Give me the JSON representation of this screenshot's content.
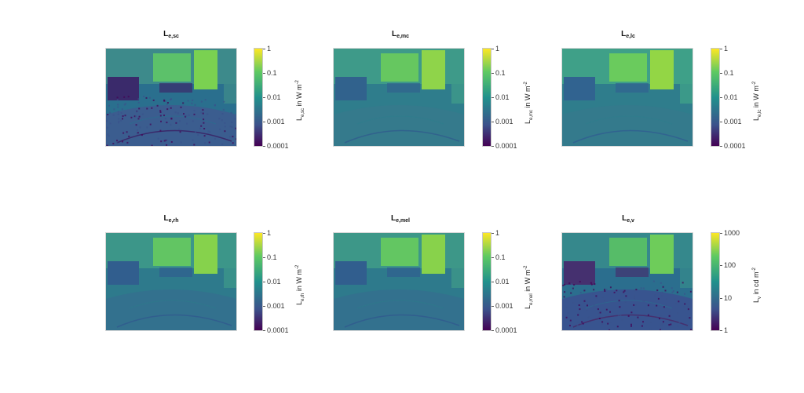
{
  "chart_data": [
    {
      "type": "heatmap",
      "title_main": "L",
      "title_sub": "e,sc",
      "colorbar": {
        "scale": "log",
        "range": [
          0.0001,
          1
        ],
        "ticks": [
          "1",
          "0.1",
          "0.01",
          "0.001",
          "0.0001"
        ],
        "label_main": "L",
        "label_sub": "e,sc",
        "label_rest": " in W m",
        "label_sup": "-2"
      },
      "colormap": "viridis"
    },
    {
      "type": "heatmap",
      "title_main": "L",
      "title_sub": "e,mc",
      "colorbar": {
        "scale": "log",
        "range": [
          0.0001,
          1
        ],
        "ticks": [
          "1",
          "0.1",
          "0.01",
          "0.001",
          "0.0001"
        ],
        "label_main": "L",
        "label_sub": "e,mc",
        "label_rest": " in W m",
        "label_sup": "-2"
      },
      "colormap": "viridis"
    },
    {
      "type": "heatmap",
      "title_main": "L",
      "title_sub": "e,lc",
      "colorbar": {
        "scale": "log",
        "range": [
          0.0001,
          1
        ],
        "ticks": [
          "1",
          "0.1",
          "0.01",
          "0.001",
          "0.0001"
        ],
        "label_main": "L",
        "label_sub": "e,lc",
        "label_rest": " in W m",
        "label_sup": "-2"
      },
      "colormap": "viridis"
    },
    {
      "type": "heatmap",
      "title_main": "L",
      "title_sub": "e,rh",
      "colorbar": {
        "scale": "log",
        "range": [
          0.0001,
          1
        ],
        "ticks": [
          "1",
          "0.1",
          "0.01",
          "0.001",
          "0.0001"
        ],
        "label_main": "L",
        "label_sub": "e,rh",
        "label_rest": " in W m",
        "label_sup": "-2"
      },
      "colormap": "viridis"
    },
    {
      "type": "heatmap",
      "title_main": "L",
      "title_sub": "e,mel",
      "colorbar": {
        "scale": "log",
        "range": [
          0.0001,
          1
        ],
        "ticks": [
          "1",
          "0.1",
          "0.01",
          "0.001",
          "0.0001"
        ],
        "label_main": "L",
        "label_sub": "e,mel",
        "label_rest": " in W m",
        "label_sup": "-2"
      },
      "colormap": "viridis"
    },
    {
      "type": "heatmap",
      "title_main": "L",
      "title_sub": "e,v",
      "colorbar": {
        "scale": "log",
        "range": [
          1,
          1000
        ],
        "ticks": [
          "1000",
          "100",
          "10",
          "1"
        ],
        "label_main": "L",
        "label_sub": "v",
        "label_rest": " in cd m",
        "label_sup": "-2"
      },
      "colormap": "viridis"
    }
  ]
}
